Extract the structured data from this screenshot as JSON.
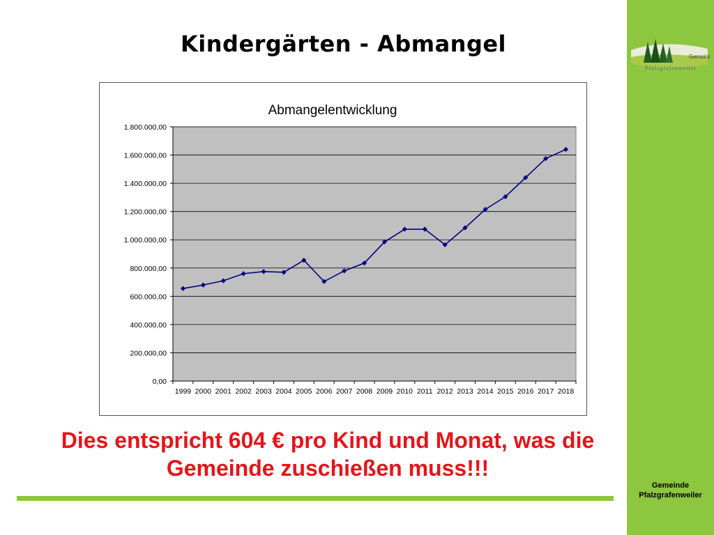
{
  "slide": {
    "title": "Kindergärten - Abmangel",
    "statement_line1": "Dies entspricht 604 € pro Kind und Monat, was die",
    "statement_line2": "Gemeinde zuschießen muss!!!"
  },
  "sidebar": {
    "logo_text_line1": "Gemeinde",
    "logo_text_line2": "Pfalzgrafenweiler",
    "footer_line1": "Gemeinde",
    "footer_line2": "Pfalzgrafenweiler"
  },
  "colors": {
    "sidebar": "#8dc63f",
    "statement": "#e3151a",
    "series": "#00007f",
    "plot_area": "#c0c0c0"
  },
  "chart_data": {
    "type": "line",
    "title": "Abmangelentwicklung",
    "xlabel": "",
    "ylabel": "",
    "x": [
      "1999",
      "2000",
      "2001",
      "2002",
      "2003",
      "2004",
      "2005",
      "2006",
      "2007",
      "2008",
      "2009",
      "2010",
      "2011",
      "2012",
      "2013",
      "2014",
      "2015",
      "2016",
      "2017",
      "2018"
    ],
    "series": [
      {
        "values": [
          655000,
          680000,
          710000,
          760000,
          775000,
          770000,
          855000,
          705000,
          780000,
          835000,
          985000,
          1075000,
          1075000,
          965000,
          1085000,
          1215000,
          1305000,
          1440000,
          1575000,
          1640000
        ]
      }
    ],
    "ylim": [
      0,
      1800000
    ],
    "yticks": [
      "0,00",
      "200.000,00",
      "400.000,00",
      "600.000,00",
      "800.000,00",
      "1.000.000,00",
      "1.200.000,00",
      "1.400.000,00",
      "1.600.000,00",
      "1.800.000,00"
    ],
    "grid": true,
    "legend": "none",
    "marker": "diamond"
  }
}
